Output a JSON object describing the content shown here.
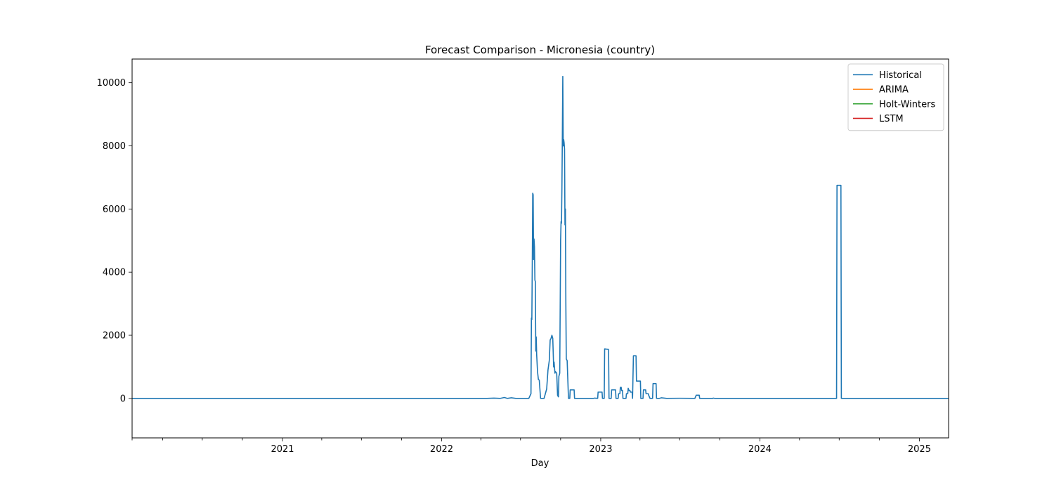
{
  "chart_data": {
    "type": "line",
    "title": "Forecast Comparison - Micronesia (country)",
    "xlabel": "Day",
    "ylabel": "",
    "x_range": [
      "2020-01-22",
      "2025-03-09"
    ],
    "ylim": [
      -1250,
      10750
    ],
    "grid": false,
    "legend_position": "top-right",
    "x_tick_labels": [
      {
        "date": "2021-01-01",
        "label": "2021"
      },
      {
        "date": "2022-01-01",
        "label": "2022"
      },
      {
        "date": "2023-01-01",
        "label": "2023"
      },
      {
        "date": "2024-01-01",
        "label": "2024"
      },
      {
        "date": "2025-01-01",
        "label": "2025"
      }
    ],
    "x_minor_ticks": [
      "2020-04-01",
      "2020-07-01",
      "2020-10-01",
      "2021-04-01",
      "2021-07-01",
      "2021-10-01",
      "2022-04-01",
      "2022-07-01",
      "2022-10-01",
      "2023-04-01",
      "2023-07-01",
      "2023-10-01",
      "2024-04-01",
      "2024-07-01",
      "2024-10-01"
    ],
    "y_ticks": [
      0,
      2000,
      4000,
      6000,
      8000,
      10000
    ],
    "y_tick_labels": [
      "0",
      "2000",
      "4000",
      "6000",
      "8000",
      "10000"
    ],
    "series": [
      {
        "name": "Historical",
        "color": "#1f77b4",
        "points": [
          [
            "2020-01-22",
            0
          ],
          [
            "2022-04-15",
            0
          ],
          [
            "2022-05-01",
            10
          ],
          [
            "2022-05-15",
            0
          ],
          [
            "2022-05-25",
            30
          ],
          [
            "2022-06-01",
            0
          ],
          [
            "2022-06-10",
            20
          ],
          [
            "2022-06-20",
            0
          ],
          [
            "2022-07-20",
            0
          ],
          [
            "2022-07-25",
            150
          ],
          [
            "2022-07-26",
            2550
          ],
          [
            "2022-07-27",
            2500
          ],
          [
            "2022-07-28",
            4300
          ],
          [
            "2022-07-29",
            6500
          ],
          [
            "2022-07-30",
            6450
          ],
          [
            "2022-07-31",
            4400
          ],
          [
            "2022-08-01",
            5050
          ],
          [
            "2022-08-02",
            4800
          ],
          [
            "2022-08-03",
            3750
          ],
          [
            "2022-08-04",
            3700
          ],
          [
            "2022-08-05",
            1500
          ],
          [
            "2022-08-06",
            1950
          ],
          [
            "2022-08-07",
            1400
          ],
          [
            "2022-08-09",
            850
          ],
          [
            "2022-08-11",
            600
          ],
          [
            "2022-08-13",
            580
          ],
          [
            "2022-08-16",
            0
          ],
          [
            "2022-08-24",
            0
          ],
          [
            "2022-08-30",
            300
          ],
          [
            "2022-09-02",
            900
          ],
          [
            "2022-09-05",
            1200
          ],
          [
            "2022-09-07",
            1850
          ],
          [
            "2022-09-09",
            1900
          ],
          [
            "2022-09-11",
            2000
          ],
          [
            "2022-09-13",
            1900
          ],
          [
            "2022-09-15",
            1000
          ],
          [
            "2022-09-16",
            1150
          ],
          [
            "2022-09-18",
            800
          ],
          [
            "2022-09-19",
            850
          ],
          [
            "2022-09-22",
            800
          ],
          [
            "2022-09-24",
            100
          ],
          [
            "2022-09-26",
            50
          ],
          [
            "2022-09-27",
            700
          ],
          [
            "2022-09-29",
            800
          ],
          [
            "2022-10-01",
            5000
          ],
          [
            "2022-10-02",
            5600
          ],
          [
            "2022-10-03",
            5550
          ],
          [
            "2022-10-04",
            6700
          ],
          [
            "2022-10-05",
            8350
          ],
          [
            "2022-10-06",
            10200
          ],
          [
            "2022-10-07",
            8000
          ],
          [
            "2022-10-08",
            8200
          ],
          [
            "2022-10-09",
            8100
          ],
          [
            "2022-10-10",
            7900
          ],
          [
            "2022-10-11",
            5500
          ],
          [
            "2022-10-12",
            6000
          ],
          [
            "2022-10-13",
            3000
          ],
          [
            "2022-10-14",
            1250
          ],
          [
            "2022-10-16",
            1200
          ],
          [
            "2022-10-19",
            0
          ],
          [
            "2022-10-22",
            0
          ],
          [
            "2022-10-23",
            270
          ],
          [
            "2022-11-01",
            270
          ],
          [
            "2022-11-02",
            0
          ],
          [
            "2022-12-15",
            0
          ],
          [
            "2022-12-18",
            10
          ],
          [
            "2022-12-25",
            0
          ],
          [
            "2022-12-26",
            200
          ],
          [
            "2023-01-04",
            200
          ],
          [
            "2023-01-05",
            0
          ],
          [
            "2023-01-09",
            0
          ],
          [
            "2023-01-10",
            1570
          ],
          [
            "2023-01-19",
            1550
          ],
          [
            "2023-01-20",
            0
          ],
          [
            "2023-01-25",
            0
          ],
          [
            "2023-01-26",
            270
          ],
          [
            "2023-02-04",
            270
          ],
          [
            "2023-02-05",
            0
          ],
          [
            "2023-02-10",
            0
          ],
          [
            "2023-02-11",
            150
          ],
          [
            "2023-02-14",
            150
          ],
          [
            "2023-02-15",
            350
          ],
          [
            "2023-02-17",
            350
          ],
          [
            "2023-02-18",
            250
          ],
          [
            "2023-02-20",
            250
          ],
          [
            "2023-02-21",
            0
          ],
          [
            "2023-02-28",
            0
          ],
          [
            "2023-03-01",
            150
          ],
          [
            "2023-03-04",
            150
          ],
          [
            "2023-03-05",
            320
          ],
          [
            "2023-03-07",
            250
          ],
          [
            "2023-03-09",
            250
          ],
          [
            "2023-03-10",
            200
          ],
          [
            "2023-03-14",
            200
          ],
          [
            "2023-03-15",
            0
          ],
          [
            "2023-03-17",
            1350
          ],
          [
            "2023-03-23",
            1350
          ],
          [
            "2023-03-24",
            550
          ],
          [
            "2023-04-02",
            550
          ],
          [
            "2023-04-03",
            0
          ],
          [
            "2023-04-08",
            0
          ],
          [
            "2023-04-09",
            270
          ],
          [
            "2023-04-14",
            270
          ],
          [
            "2023-04-15",
            150
          ],
          [
            "2023-04-20",
            150
          ],
          [
            "2023-04-21",
            100
          ],
          [
            "2023-04-24",
            0
          ],
          [
            "2023-04-30",
            0
          ],
          [
            "2023-05-01",
            470
          ],
          [
            "2023-05-08",
            470
          ],
          [
            "2023-05-09",
            0
          ],
          [
            "2023-05-15",
            0
          ],
          [
            "2023-05-20",
            20
          ],
          [
            "2023-06-01",
            0
          ],
          [
            "2023-07-01",
            5
          ],
          [
            "2023-08-05",
            0
          ],
          [
            "2023-08-08",
            100
          ],
          [
            "2023-08-15",
            100
          ],
          [
            "2023-08-16",
            0
          ],
          [
            "2023-09-15",
            0
          ],
          [
            "2023-09-16",
            10
          ],
          [
            "2023-09-20",
            0
          ],
          [
            "2024-06-25",
            0
          ],
          [
            "2024-06-26",
            6750
          ],
          [
            "2024-07-05",
            6750
          ],
          [
            "2024-07-06",
            0
          ],
          [
            "2025-03-09",
            0
          ]
        ]
      },
      {
        "name": "ARIMA",
        "color": "#ff7f0e",
        "points": []
      },
      {
        "name": "Holt-Winters",
        "color": "#2ca02c",
        "points": []
      },
      {
        "name": "LSTM",
        "color": "#d62728",
        "points": []
      }
    ]
  }
}
